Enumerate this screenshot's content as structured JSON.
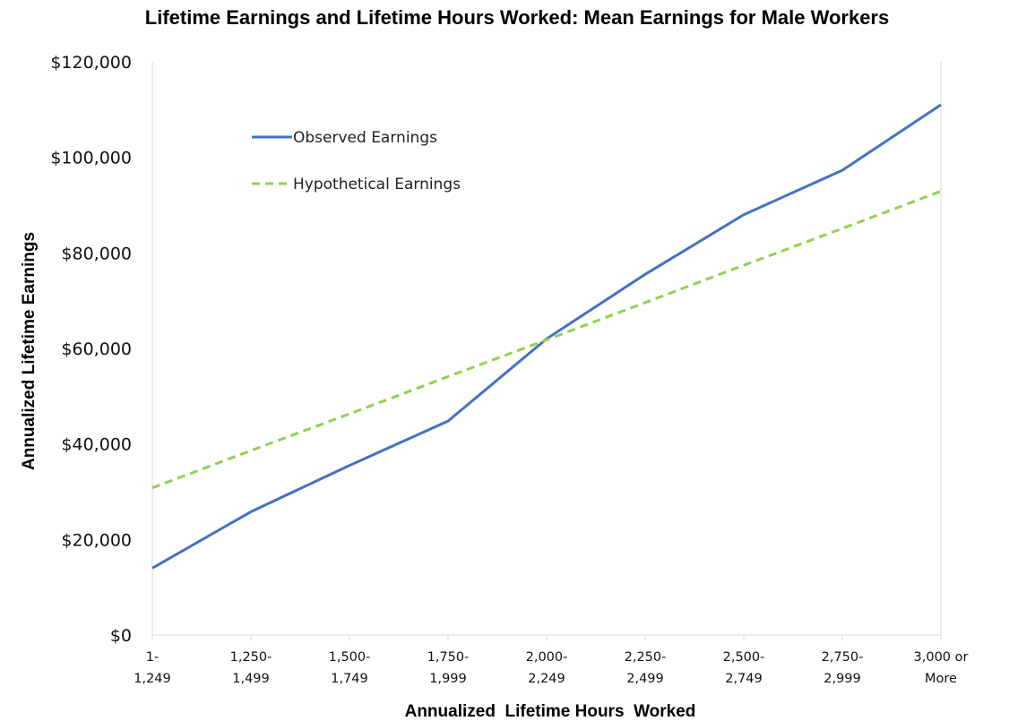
{
  "chart_data": {
    "type": "line",
    "title": "Lifetime Earnings and Lifetime Hours Worked: Mean Earnings for Male Workers",
    "xlabel": "Annualized  Lifetime Hours  Worked",
    "ylabel": "Annualized Lifetime Earnings",
    "ylim": [
      0,
      120000
    ],
    "yticks": [
      0,
      20000,
      40000,
      60000,
      80000,
      100000,
      120000
    ],
    "ytick_labels": [
      "$0",
      "$20,000",
      "$40,000",
      "$60,000",
      "$80,000",
      "$100,000",
      "$120,000"
    ],
    "categories": [
      [
        "1-",
        "1,249"
      ],
      [
        "1,250-",
        "1,499"
      ],
      [
        "1,500-",
        "1,749"
      ],
      [
        "1,750-",
        "1,999"
      ],
      [
        "2,000-",
        "2,249"
      ],
      [
        "2,250-",
        "2,499"
      ],
      [
        "2,500-",
        "2,749"
      ],
      [
        "2,750-",
        "2,999"
      ],
      [
        "3,000 or",
        "More"
      ]
    ],
    "series": [
      {
        "name": "Observed Earnings",
        "color": "#4472C4",
        "style": "solid",
        "values": [
          14000,
          25800,
          35500,
          44800,
          62000,
          75500,
          88000,
          97300,
          111000
        ]
      },
      {
        "name": "Hypothetical Earnings",
        "color": "#92D050",
        "style": "dashed",
        "values": [
          30800,
          38600,
          46300,
          54100,
          61800,
          69600,
          77400,
          85100,
          92900
        ]
      }
    ],
    "grid": false,
    "legend_position": "top-left"
  }
}
